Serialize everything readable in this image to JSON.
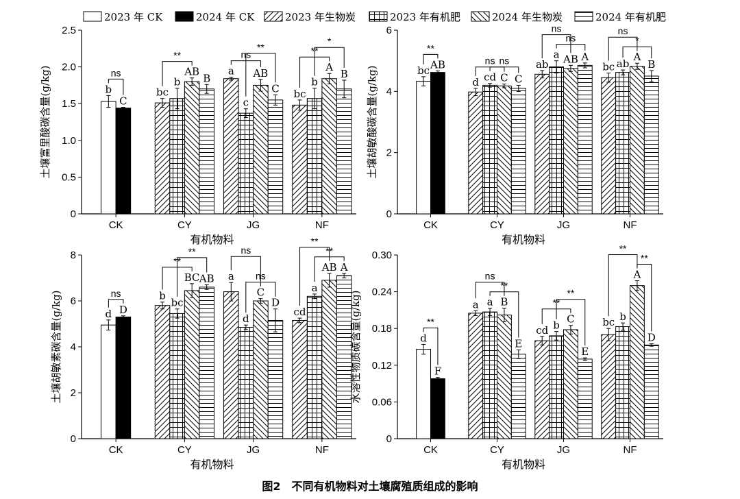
{
  "figure_caption": "图2　不同有机物料对土壤腐殖质组成的影响",
  "legend": [
    {
      "label": "2023 年 CK",
      "pattern": "white"
    },
    {
      "label": "2024 年 CK",
      "pattern": "black"
    },
    {
      "label": "2023 年生物炭",
      "pattern": "diag-up"
    },
    {
      "label": "2023 年有机肥",
      "pattern": "grid"
    },
    {
      "label": "2024 年生物炭",
      "pattern": "diag-down"
    },
    {
      "label": "2024 年有机肥",
      "pattern": "hlines"
    }
  ],
  "chart_data": [
    {
      "type": "bar",
      "ylabel": "土壤富里酸碳含量(g/kg)",
      "xlabel": "有机物料",
      "ylim": [
        0,
        2.5
      ],
      "yticks": [
        0,
        0.5,
        1.0,
        1.5,
        2.0,
        2.5
      ],
      "ytick_labels": [
        "0",
        "0.5",
        "1.0",
        "1.5",
        "2.0",
        "2.5"
      ],
      "categories": [
        {
          "name": "CK",
          "bars": [
            {
              "series": "2023 年 CK",
              "value": 1.53,
              "err": 0.08,
              "label": "b"
            },
            {
              "series": "2024 年 CK",
              "value": 1.44,
              "err": 0.01,
              "label": "C"
            }
          ]
        },
        {
          "name": "CY",
          "bars": [
            {
              "series": "2023 年生物炭",
              "value": 1.51,
              "err": 0.06,
              "label": "bc"
            },
            {
              "series": "2023 年有机肥",
              "value": 1.57,
              "err": 0.14,
              "label": "b"
            },
            {
              "series": "2024 年生物炭",
              "value": 1.8,
              "err": 0.05,
              "label": "AB"
            },
            {
              "series": "2024 年有机肥",
              "value": 1.7,
              "err": 0.06,
              "label": "B"
            }
          ]
        },
        {
          "name": "JG",
          "bars": [
            {
              "series": "2023 年生物炭",
              "value": 1.84,
              "err": 0.02,
              "label": "a"
            },
            {
              "series": "2023 年有机肥",
              "value": 1.37,
              "err": 0.06,
              "label": "c"
            },
            {
              "series": "2024 年生物炭",
              "value": 1.75,
              "err": 0.08,
              "label": "AB"
            },
            {
              "series": "2024 年有机肥",
              "value": 1.55,
              "err": 0.07,
              "label": "C"
            }
          ]
        },
        {
          "name": "NF",
          "bars": [
            {
              "series": "2023 年生物炭",
              "value": 1.48,
              "err": 0.07,
              "label": "bc"
            },
            {
              "series": "2023 年有机肥",
              "value": 1.57,
              "err": 0.14,
              "label": "b"
            },
            {
              "series": "2024 年生物炭",
              "value": 1.84,
              "err": 0.07,
              "label": "A"
            },
            {
              "series": "2024 年有机肥",
              "value": 1.7,
              "err": 0.12,
              "label": "B"
            }
          ]
        }
      ],
      "significance": [
        {
          "category": "CK",
          "from": 0,
          "to": 1,
          "level": 0,
          "label": "ns"
        },
        {
          "category": "CY",
          "from": 0,
          "to": 2,
          "level": 0,
          "label": "**"
        },
        {
          "category": "JG",
          "from": 0,
          "to": 2,
          "level": 0,
          "label": "ns"
        },
        {
          "category": "JG",
          "from": 1,
          "to": 3,
          "level": 1,
          "label": "**"
        },
        {
          "category": "NF",
          "from": 0,
          "to": 2,
          "level": 0,
          "label": "**"
        },
        {
          "category": "NF",
          "from": 1,
          "to": 3,
          "level": 1,
          "label": "*"
        }
      ]
    },
    {
      "type": "bar",
      "ylabel": "土壤胡敏酸碳含量(g/kg)",
      "xlabel": "有机物料",
      "ylim": [
        0,
        6
      ],
      "yticks": [
        0,
        2,
        4,
        6
      ],
      "ytick_labels": [
        "0",
        "2",
        "4",
        "6"
      ],
      "categories": [
        {
          "name": "CK",
          "bars": [
            {
              "series": "2023 年 CK",
              "value": 4.33,
              "err": 0.15,
              "label": "bc"
            },
            {
              "series": "2024 年 CK",
              "value": 4.62,
              "err": 0.05,
              "label": "AB"
            }
          ]
        },
        {
          "name": "CY",
          "bars": [
            {
              "series": "2023 年生物炭",
              "value": 3.98,
              "err": 0.12,
              "label": "d"
            },
            {
              "series": "2023 年有机肥",
              "value": 4.2,
              "err": 0.06,
              "label": "cd"
            },
            {
              "series": "2024 年生物炭",
              "value": 4.18,
              "err": 0.06,
              "label": "C"
            },
            {
              "series": "2024 年有机肥",
              "value": 4.1,
              "err": 0.1,
              "label": "C"
            }
          ]
        },
        {
          "name": "JG",
          "bars": [
            {
              "series": "2023 年生物炭",
              "value": 4.56,
              "err": 0.12,
              "label": "ab"
            },
            {
              "series": "2023 年有机肥",
              "value": 4.8,
              "err": 0.2,
              "label": "a"
            },
            {
              "series": "2024 年生物炭",
              "value": 4.75,
              "err": 0.1,
              "label": "AB"
            },
            {
              "series": "2024 年有机肥",
              "value": 4.85,
              "err": 0.08,
              "label": "A"
            }
          ]
        },
        {
          "name": "NF",
          "bars": [
            {
              "series": "2023 年生物炭",
              "value": 4.45,
              "err": 0.15,
              "label": "bc"
            },
            {
              "series": "2023 年有机肥",
              "value": 4.62,
              "err": 0.08,
              "label": "ab"
            },
            {
              "series": "2024 年生物炭",
              "value": 4.82,
              "err": 0.1,
              "label": "A"
            },
            {
              "series": "2024 年有机肥",
              "value": 4.5,
              "err": 0.18,
              "label": "B"
            }
          ]
        }
      ],
      "significance": [
        {
          "category": "CK",
          "from": 0,
          "to": 1,
          "level": 0,
          "label": "**"
        },
        {
          "category": "CY",
          "from": 0,
          "to": 2,
          "level": 0,
          "label": "ns"
        },
        {
          "category": "CY",
          "from": 1,
          "to": 3,
          "level": 0,
          "label": "ns"
        },
        {
          "category": "JG",
          "from": 0,
          "to": 2,
          "level": 1,
          "label": "ns"
        },
        {
          "category": "JG",
          "from": 1,
          "to": 3,
          "level": 0,
          "label": "ns"
        },
        {
          "category": "NF",
          "from": 0,
          "to": 2,
          "level": 1,
          "label": "ns"
        },
        {
          "category": "NF",
          "from": 1,
          "to": 3,
          "level": 0,
          "label": "*"
        }
      ]
    },
    {
      "type": "bar",
      "ylabel": "土壤胡敏素碳含量(g/kg)",
      "xlabel": "有机物料",
      "ylim": [
        0,
        8
      ],
      "yticks": [
        0,
        2,
        4,
        6,
        8
      ],
      "ytick_labels": [
        "0",
        "2",
        "4",
        "6",
        "8"
      ],
      "categories": [
        {
          "name": "CK",
          "bars": [
            {
              "series": "2023 年 CK",
              "value": 4.95,
              "err": 0.22,
              "label": "d"
            },
            {
              "series": "2024 年 CK",
              "value": 5.3,
              "err": 0.05,
              "label": "D"
            }
          ]
        },
        {
          "name": "CY",
          "bars": [
            {
              "series": "2023 年生物炭",
              "value": 5.8,
              "err": 0.15,
              "label": "b"
            },
            {
              "series": "2023 年有机肥",
              "value": 5.45,
              "err": 0.2,
              "label": "bc"
            },
            {
              "series": "2024 年生物炭",
              "value": 6.45,
              "err": 0.3,
              "label": "BC"
            },
            {
              "series": "2024 年有机肥",
              "value": 6.6,
              "err": 0.1,
              "label": "AB"
            }
          ]
        },
        {
          "name": "JG",
          "bars": [
            {
              "series": "2023 年生物炭",
              "value": 6.4,
              "err": 0.4,
              "label": "a"
            },
            {
              "series": "2023 年有机肥",
              "value": 4.85,
              "err": 0.1,
              "label": "d"
            },
            {
              "series": "2024 年生物炭",
              "value": 6.0,
              "err": 0.1,
              "label": "C"
            },
            {
              "series": "2024 年有机肥",
              "value": 5.15,
              "err": 0.5,
              "label": "D"
            }
          ]
        },
        {
          "name": "NF",
          "bars": [
            {
              "series": "2023 年生物炭",
              "value": 5.15,
              "err": 0.1,
              "label": "cd"
            },
            {
              "series": "2023 年有机肥",
              "value": 6.2,
              "err": 0.1,
              "label": "a"
            },
            {
              "series": "2024 年生物炭",
              "value": 6.9,
              "err": 0.3,
              "label": "AB"
            },
            {
              "series": "2024 年有机肥",
              "value": 7.1,
              "err": 0.1,
              "label": "A"
            }
          ]
        }
      ],
      "significance": [
        {
          "category": "CK",
          "from": 0,
          "to": 1,
          "level": 0,
          "label": "ns"
        },
        {
          "category": "CY",
          "from": 0,
          "to": 2,
          "level": 0,
          "label": "**"
        },
        {
          "category": "CY",
          "from": 1,
          "to": 3,
          "level": 1,
          "label": "**"
        },
        {
          "category": "JG",
          "from": 0,
          "to": 2,
          "level": 1,
          "label": "ns"
        },
        {
          "category": "JG",
          "from": 1,
          "to": 3,
          "level": 0,
          "label": "ns"
        },
        {
          "category": "NF",
          "from": 0,
          "to": 2,
          "level": 1,
          "label": "**"
        },
        {
          "category": "NF",
          "from": 1,
          "to": 3,
          "level": 0,
          "label": "**"
        }
      ]
    },
    {
      "type": "bar",
      "ylabel": "水溶性物质碳含量(g/kg)",
      "xlabel": "有机物料",
      "ylim": [
        0,
        0.3
      ],
      "yticks": [
        0,
        0.06,
        0.12,
        0.18,
        0.24,
        0.3
      ],
      "ytick_labels": [
        "0",
        "0.06",
        "0.12",
        "0.18",
        "0.24",
        "0.30"
      ],
      "categories": [
        {
          "name": "CK",
          "bars": [
            {
              "series": "2023 年 CK",
              "value": 0.146,
              "err": 0.008,
              "label": "d"
            },
            {
              "series": "2024 年 CK",
              "value": 0.098,
              "err": 0.002,
              "label": "F"
            }
          ]
        },
        {
          "name": "CY",
          "bars": [
            {
              "series": "2023 年生物炭",
              "value": 0.205,
              "err": 0.004,
              "label": "a"
            },
            {
              "series": "2023 年有机肥",
              "value": 0.207,
              "err": 0.006,
              "label": "a"
            },
            {
              "series": "2024 年生物炭",
              "value": 0.202,
              "err": 0.011,
              "label": "B"
            },
            {
              "series": "2024 年有机肥",
              "value": 0.138,
              "err": 0.007,
              "label": "E"
            }
          ]
        },
        {
          "name": "JG",
          "bars": [
            {
              "series": "2023 年生物炭",
              "value": 0.16,
              "err": 0.007,
              "label": "cd"
            },
            {
              "series": "2023 年有机肥",
              "value": 0.168,
              "err": 0.007,
              "label": "b"
            },
            {
              "series": "2024 年生物炭",
              "value": 0.178,
              "err": 0.007,
              "label": "C"
            },
            {
              "series": "2024 年有机肥",
              "value": 0.13,
              "err": 0.002,
              "label": "E"
            }
          ]
        },
        {
          "name": "NF",
          "bars": [
            {
              "series": "2023 年生物炭",
              "value": 0.17,
              "err": 0.01,
              "label": "bc"
            },
            {
              "series": "2023 年有机肥",
              "value": 0.183,
              "err": 0.006,
              "label": "b"
            },
            {
              "series": "2024 年生物炭",
              "value": 0.25,
              "err": 0.008,
              "label": "A"
            },
            {
              "series": "2024 年有机肥",
              "value": 0.153,
              "err": 0.002,
              "label": "D"
            }
          ]
        }
      ],
      "significance": [
        {
          "category": "CK",
          "from": 0,
          "to": 1,
          "level": 0,
          "label": "**"
        },
        {
          "category": "CY",
          "from": 0,
          "to": 2,
          "level": 1,
          "label": "ns"
        },
        {
          "category": "CY",
          "from": 1,
          "to": 3,
          "level": 0,
          "label": "**"
        },
        {
          "category": "JG",
          "from": 0,
          "to": 2,
          "level": 0,
          "label": "**"
        },
        {
          "category": "JG",
          "from": 1,
          "to": 3,
          "level": 1,
          "label": "**"
        },
        {
          "category": "NF",
          "from": 0,
          "to": 2,
          "level": 1,
          "label": "**"
        },
        {
          "category": "NF",
          "from": 2,
          "to": 3,
          "level": 0,
          "label": "**"
        }
      ]
    }
  ]
}
